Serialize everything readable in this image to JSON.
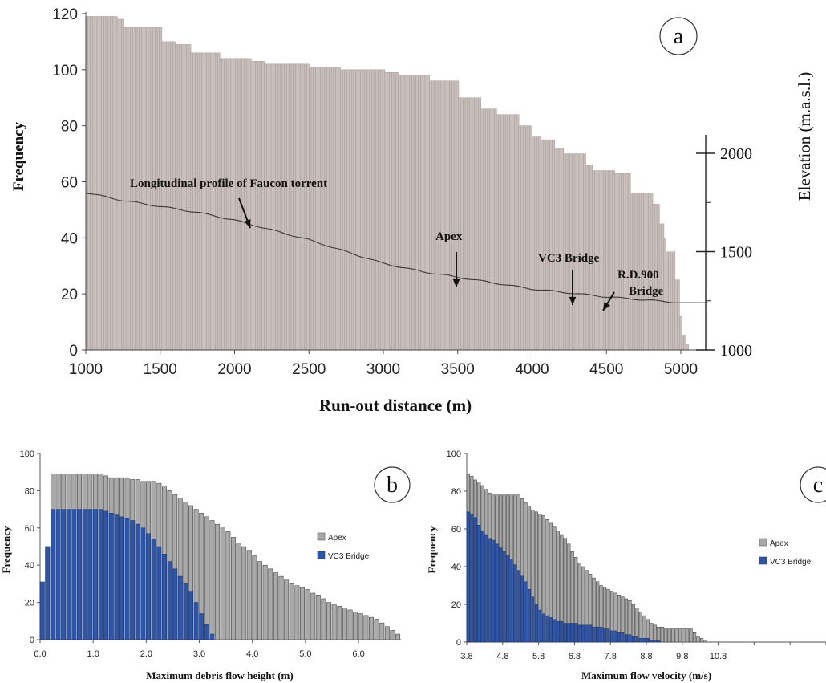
{
  "chart_data": [
    {
      "panel": "a",
      "type": "bar",
      "panel_letter": "a",
      "xlabel": "Run-out distance (m)",
      "ylabel": "Frequency",
      "y2label": "Elevation (m.a.s.l.)",
      "xlim": [
        1000,
        5100
      ],
      "ylim": [
        0,
        120
      ],
      "y2lim": [
        1000,
        2100
      ],
      "x_ticks": [
        1000,
        1500,
        2000,
        2500,
        3000,
        3500,
        4000,
        4500,
        5000
      ],
      "y_ticks": [
        0,
        20,
        40,
        60,
        80,
        100,
        120
      ],
      "y2_ticks": [
        1000,
        1500,
        2000
      ],
      "bar_color": "#c9bfbd",
      "frequency": {
        "x": [
          1000,
          1200,
          1250,
          1500,
          1600,
          1700,
          1900,
          2100,
          2200,
          2500,
          2700,
          2800,
          3000,
          3100,
          3150,
          3300,
          3500,
          3650,
          3750,
          3900,
          4000,
          4050,
          4150,
          4200,
          4350,
          4400,
          4500,
          4550,
          4650,
          4800,
          4850,
          4880,
          4900,
          4950,
          4980,
          5000,
          5030,
          5050
        ],
        "y": [
          119,
          118,
          115,
          110,
          109,
          106,
          104,
          103,
          102,
          101,
          100,
          100,
          99,
          98,
          98,
          96,
          90,
          86,
          84,
          80,
          76,
          75,
          72,
          70,
          66,
          64,
          64,
          63,
          56,
          52,
          45,
          40,
          35,
          25,
          12,
          5,
          2,
          0
        ]
      },
      "elevation_profile": {
        "name": "Longitudinal profile of Faucon torrent",
        "x": [
          1000,
          1250,
          1500,
          1750,
          2000,
          2250,
          2500,
          2750,
          3000,
          3250,
          3500,
          3750,
          4000,
          4250,
          4500,
          4750,
          5000
        ],
        "y": [
          1800,
          1760,
          1730,
          1700,
          1660,
          1610,
          1560,
          1500,
          1440,
          1400,
          1370,
          1340,
          1310,
          1290,
          1270,
          1255,
          1240
        ]
      },
      "annotations": [
        {
          "text": "Longitudinal profile of Faucon torrent",
          "x": 2080
        },
        {
          "text": "Apex",
          "x": 3470
        },
        {
          "text": "VC3 Bridge",
          "x": 4240
        },
        {
          "text": "R.D.900",
          "x": 4570
        },
        {
          "text": "Bridge",
          "x": 4570
        }
      ]
    },
    {
      "panel": "b",
      "type": "bar",
      "panel_letter": "b",
      "xlabel": "Maximum debris flow height (m)",
      "ylabel": "Frequency",
      "xlim": [
        0,
        6.8
      ],
      "ylim": [
        0,
        100
      ],
      "x_ticks": [
        "0.0",
        "1.0",
        "2.0",
        "3.0",
        "4.0",
        "5.0",
        "6.0"
      ],
      "y_ticks": [
        0,
        20,
        40,
        60,
        80,
        100
      ],
      "bin_width": 0.1,
      "series": [
        {
          "name": "Apex",
          "color": "#a9a9a9",
          "x_start": 0.0,
          "values": [
            31,
            50,
            89,
            89,
            89,
            89,
            89,
            89,
            89,
            89,
            89,
            89,
            88,
            87,
            87,
            87,
            87,
            86,
            86,
            85,
            85,
            85,
            84,
            82,
            80,
            78,
            76,
            74,
            72,
            70,
            68,
            66,
            64,
            62,
            60,
            58,
            55,
            52,
            50,
            48,
            45,
            42,
            40,
            38,
            36,
            34,
            32,
            30,
            29,
            28,
            27,
            25,
            24,
            22,
            20,
            19,
            18,
            17,
            16,
            15,
            14,
            13,
            12,
            11,
            9,
            7,
            5,
            3
          ]
        },
        {
          "name": "VC3 Bridge",
          "color": "#2e55a6",
          "x_start": 0.0,
          "values": [
            31,
            50,
            70,
            70,
            70,
            70,
            70,
            70,
            70,
            70,
            70,
            70,
            69,
            68,
            67,
            66,
            65,
            64,
            62,
            60,
            57,
            54,
            50,
            46,
            42,
            38,
            34,
            30,
            26,
            20,
            14,
            8,
            3
          ]
        }
      ],
      "legend": [
        "Apex",
        "VC3 Bridge"
      ],
      "legend_position": "right"
    },
    {
      "panel": "c",
      "type": "bar",
      "panel_letter": "c",
      "xlabel": "Maximum flow velocity (m/s)",
      "ylabel": "Frequency",
      "xlim": [
        3.8,
        13.8
      ],
      "ylim": [
        0,
        100
      ],
      "x_ticks": [
        "3.8",
        "4.8",
        "5.8",
        "6.8",
        "7.8",
        "8.8",
        "9.8",
        "10.8"
      ],
      "y_ticks": [
        0,
        20,
        40,
        60,
        80,
        100
      ],
      "bin_width": 0.1,
      "series": [
        {
          "name": "Apex",
          "color": "#a9a9a9",
          "x_start": 3.8,
          "values": [
            89,
            88,
            86,
            85,
            83,
            81,
            79,
            78,
            78,
            78,
            78,
            78,
            78,
            78,
            78,
            76,
            74,
            72,
            70,
            69,
            68,
            67,
            65,
            63,
            61,
            59,
            57,
            55,
            52,
            48,
            45,
            42,
            40,
            38,
            36,
            34,
            32,
            30,
            29,
            28,
            27,
            26,
            25,
            24,
            23,
            22,
            20,
            18,
            16,
            14,
            12,
            10,
            9,
            8,
            8,
            7,
            7,
            7,
            7,
            7,
            7,
            7,
            7,
            5,
            3,
            2,
            1
          ]
        },
        {
          "name": "VC3 Bridge",
          "color": "#2e55a6",
          "x_start": 3.8,
          "values": [
            69,
            68,
            66,
            62,
            59,
            57,
            55,
            54,
            52,
            50,
            48,
            46,
            44,
            41,
            38,
            35,
            32,
            28,
            24,
            20,
            17,
            15,
            14,
            13,
            12,
            11,
            11,
            10,
            10,
            10,
            10,
            9,
            9,
            9,
            9,
            8,
            8,
            8,
            7,
            7,
            6,
            6,
            5,
            5,
            4,
            4,
            3,
            3,
            2,
            2,
            2,
            1,
            1,
            1
          ]
        }
      ],
      "legend": [
        "Apex",
        "VC3 Bridge"
      ],
      "legend_position": "right"
    }
  ]
}
